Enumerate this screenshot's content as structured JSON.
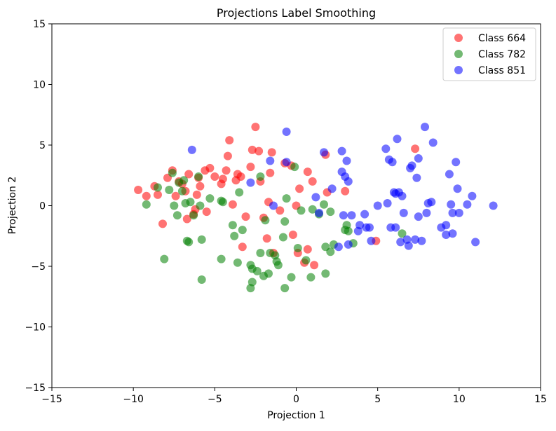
{
  "chart_data": {
    "type": "scatter",
    "title": "Projections Label Smoothing",
    "xlabel": "Projection 1",
    "ylabel": "Projection 2",
    "xlim": [
      -15,
      15
    ],
    "ylim": [
      -15,
      15
    ],
    "xticks": [
      -15,
      -10,
      -5,
      0,
      5,
      10,
      15
    ],
    "yticks": [
      -15,
      -10,
      -5,
      0,
      5,
      10,
      15
    ],
    "xtick_labels": [
      "−15",
      "−10",
      "−5",
      "0",
      "5",
      "10",
      "15"
    ],
    "ytick_labels": [
      "−15",
      "−10",
      "−5",
      "0",
      "5",
      "10",
      "15"
    ],
    "grid": false,
    "legend_position": "top-right",
    "series": [
      {
        "name": "Class 664",
        "color": "#ff0000",
        "points": [
          [
            -9.7,
            1.3
          ],
          [
            -9.2,
            0.8
          ],
          [
            -8.7,
            1.6
          ],
          [
            -8.5,
            0.9
          ],
          [
            -8.2,
            -1.5
          ],
          [
            -7.9,
            2.3
          ],
          [
            -7.6,
            2.9
          ],
          [
            -7.4,
            0.8
          ],
          [
            -7.2,
            2.0
          ],
          [
            -7.0,
            1.8
          ],
          [
            -6.8,
            1.2
          ],
          [
            -6.7,
            -1.1
          ],
          [
            -6.6,
            2.6
          ],
          [
            -6.3,
            -0.7
          ],
          [
            -6.2,
            -0.3
          ],
          [
            -6.1,
            0.9
          ],
          [
            -6.0,
            2.3
          ],
          [
            -5.9,
            1.6
          ],
          [
            -5.6,
            2.9
          ],
          [
            -5.5,
            -0.5
          ],
          [
            -5.3,
            3.1
          ],
          [
            -5.0,
            2.4
          ],
          [
            -4.6,
            1.8
          ],
          [
            -4.5,
            2.2
          ],
          [
            -4.3,
            2.9
          ],
          [
            -4.2,
            4.1
          ],
          [
            -4.1,
            5.4
          ],
          [
            -3.9,
            0.1
          ],
          [
            -3.7,
            2.1
          ],
          [
            -3.6,
            2.6
          ],
          [
            -3.4,
            2.4
          ],
          [
            -3.3,
            -3.4
          ],
          [
            -3.1,
            -0.9
          ],
          [
            -2.8,
            3.2
          ],
          [
            -2.7,
            4.6
          ],
          [
            -2.5,
            6.5
          ],
          [
            -2.3,
            4.5
          ],
          [
            -2.2,
            2.0
          ],
          [
            -2.0,
            -1.0
          ],
          [
            -1.8,
            -2.7
          ],
          [
            -1.7,
            0.3
          ],
          [
            -1.6,
            2.7
          ],
          [
            -1.5,
            4.4
          ],
          [
            -1.4,
            -3.9
          ],
          [
            -1.0,
            -0.4
          ],
          [
            -0.7,
            3.5
          ],
          [
            -0.3,
            3.3
          ],
          [
            -0.2,
            -2.4
          ],
          [
            0.0,
            0.0
          ],
          [
            0.1,
            -3.9
          ],
          [
            0.2,
            1.4
          ],
          [
            0.5,
            -4.7
          ],
          [
            0.7,
            2.8
          ],
          [
            0.7,
            -3.6
          ],
          [
            1.0,
            2.0
          ],
          [
            1.1,
            -4.9
          ],
          [
            1.8,
            4.2
          ],
          [
            1.9,
            1.1
          ],
          [
            3.0,
            1.2
          ],
          [
            4.9,
            -2.9
          ],
          [
            7.3,
            4.7
          ]
        ]
      },
      {
        "name": "Class 782",
        "color": "#008000",
        "points": [
          [
            -9.2,
            0.1
          ],
          [
            -8.5,
            1.5
          ],
          [
            -8.1,
            -4.4
          ],
          [
            -7.8,
            1.3
          ],
          [
            -7.6,
            2.7
          ],
          [
            -7.5,
            0.0
          ],
          [
            -7.3,
            -0.8
          ],
          [
            -7.2,
            1.9
          ],
          [
            -7.0,
            1.2
          ],
          [
            -6.9,
            2.1
          ],
          [
            -6.8,
            0.2
          ],
          [
            -6.7,
            -2.9
          ],
          [
            -6.6,
            -3.0
          ],
          [
            -6.5,
            0.3
          ],
          [
            -6.3,
            -0.8
          ],
          [
            -6.0,
            2.4
          ],
          [
            -5.9,
            0.0
          ],
          [
            -5.8,
            -2.8
          ],
          [
            -5.8,
            -6.1
          ],
          [
            -5.3,
            0.6
          ],
          [
            -4.6,
            0.4
          ],
          [
            -4.6,
            -4.4
          ],
          [
            -4.5,
            0.3
          ],
          [
            -3.9,
            -1.6
          ],
          [
            -3.8,
            -2.5
          ],
          [
            -3.6,
            -4.7
          ],
          [
            -3.5,
            1.1
          ],
          [
            -3.3,
            -2.0
          ],
          [
            -2.8,
            -4.9
          ],
          [
            -2.8,
            -6.8
          ],
          [
            -2.7,
            -6.3
          ],
          [
            -2.7,
            -5.2
          ],
          [
            -2.4,
            -5.4
          ],
          [
            -2.2,
            2.4
          ],
          [
            -2.2,
            -3.9
          ],
          [
            -2.0,
            -5.8
          ],
          [
            -1.9,
            -1.2
          ],
          [
            -1.7,
            -5.6
          ],
          [
            -1.6,
            -3.9
          ],
          [
            -1.3,
            -4.1
          ],
          [
            -1.2,
            -4.6
          ],
          [
            -1.1,
            -4.9
          ],
          [
            -0.8,
            -2.6
          ],
          [
            -0.7,
            -1.3
          ],
          [
            -0.7,
            -6.8
          ],
          [
            -0.6,
            0.6
          ],
          [
            -0.3,
            -5.9
          ],
          [
            -0.1,
            3.2
          ],
          [
            0.1,
            -3.5
          ],
          [
            0.3,
            -0.4
          ],
          [
            0.6,
            -4.5
          ],
          [
            0.9,
            -5.9
          ],
          [
            1.0,
            -0.3
          ],
          [
            1.4,
            -0.7
          ],
          [
            1.7,
            0.1
          ],
          [
            1.8,
            -5.6
          ],
          [
            1.8,
            -3.4
          ],
          [
            2.1,
            -0.5
          ],
          [
            2.1,
            -3.8
          ],
          [
            2.3,
            -3.2
          ],
          [
            3.0,
            -2.0
          ],
          [
            3.1,
            -1.6
          ],
          [
            3.2,
            -2.1
          ],
          [
            3.5,
            -3.1
          ],
          [
            6.5,
            -2.3
          ]
        ]
      },
      {
        "name": "Class 851",
        "color": "#0000ff",
        "points": [
          [
            -6.4,
            4.6
          ],
          [
            -2.8,
            1.9
          ],
          [
            -1.6,
            3.7
          ],
          [
            -1.4,
            0.0
          ],
          [
            -0.6,
            6.1
          ],
          [
            -0.6,
            3.6
          ],
          [
            1.2,
            0.7
          ],
          [
            1.4,
            -0.6
          ],
          [
            1.7,
            4.4
          ],
          [
            2.2,
            1.4
          ],
          [
            2.6,
            -3.4
          ],
          [
            2.8,
            4.5
          ],
          [
            2.8,
            2.8
          ],
          [
            2.9,
            -0.8
          ],
          [
            3.0,
            2.4
          ],
          [
            3.1,
            3.7
          ],
          [
            3.2,
            2.0
          ],
          [
            3.2,
            -3.2
          ],
          [
            3.4,
            -0.8
          ],
          [
            3.8,
            -2.1
          ],
          [
            3.9,
            -1.6
          ],
          [
            4.2,
            -0.7
          ],
          [
            4.3,
            -1.8
          ],
          [
            4.5,
            -1.8
          ],
          [
            4.6,
            -2.9
          ],
          [
            5.0,
            0.0
          ],
          [
            5.5,
            4.7
          ],
          [
            5.6,
            0.2
          ],
          [
            5.7,
            3.8
          ],
          [
            5.8,
            -1.8
          ],
          [
            5.9,
            3.6
          ],
          [
            6.0,
            1.1
          ],
          [
            6.1,
            1.0
          ],
          [
            6.1,
            -1.8
          ],
          [
            6.2,
            5.5
          ],
          [
            6.3,
            1.1
          ],
          [
            6.4,
            -3.0
          ],
          [
            6.5,
            0.8
          ],
          [
            6.6,
            -0.6
          ],
          [
            6.8,
            -2.8
          ],
          [
            6.9,
            -3.3
          ],
          [
            7.0,
            3.1
          ],
          [
            7.1,
            3.3
          ],
          [
            7.3,
            -2.8
          ],
          [
            7.4,
            2.3
          ],
          [
            7.5,
            -0.9
          ],
          [
            7.5,
            3.9
          ],
          [
            7.7,
            -2.9
          ],
          [
            7.9,
            6.5
          ],
          [
            8.0,
            -0.6
          ],
          [
            8.1,
            0.2
          ],
          [
            8.3,
            0.3
          ],
          [
            8.4,
            5.2
          ],
          [
            8.9,
            -1.8
          ],
          [
            9.2,
            -1.6
          ],
          [
            9.2,
            -2.4
          ],
          [
            9.4,
            2.6
          ],
          [
            9.5,
            0.1
          ],
          [
            9.6,
            -2.3
          ],
          [
            9.6,
            -0.6
          ],
          [
            9.8,
            3.6
          ],
          [
            9.9,
            1.4
          ],
          [
            10.0,
            -0.6
          ],
          [
            10.5,
            0.1
          ],
          [
            10.8,
            0.8
          ],
          [
            11.0,
            -3.0
          ],
          [
            12.1,
            0.0
          ]
        ]
      }
    ]
  }
}
